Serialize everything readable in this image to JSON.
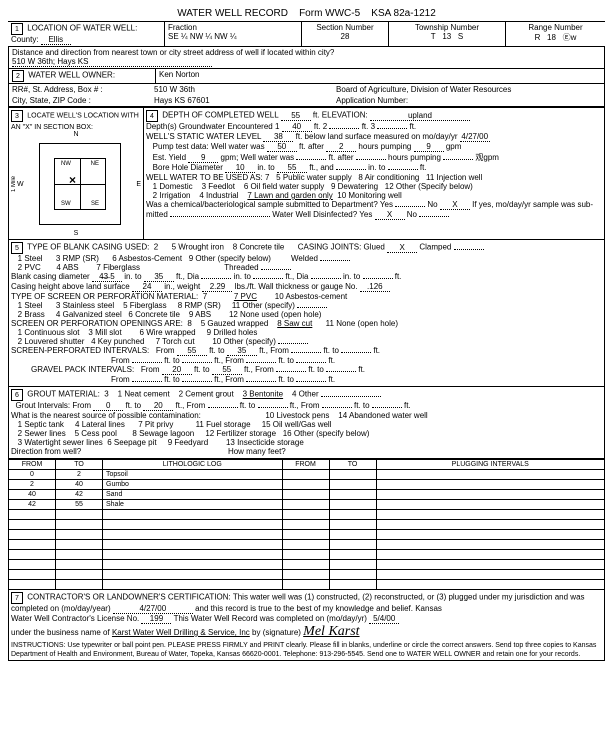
{
  "form_title": "WATER WELL RECORD",
  "form_code": "Form WWC-5",
  "form_ksa": "KSA 82a-1212",
  "location": {
    "label": "LOCATION OF WATER WELL:",
    "county_label": "County:",
    "county": "Ellis",
    "fraction_label": "Fraction",
    "fraction_se": "SE",
    "fraction_nw1": "NW",
    "fraction_nw2": "NW",
    "quarter": "¼",
    "section_label": "Section Number",
    "section": "28",
    "township_label": "Township Number",
    "township_t": "T",
    "township": "13",
    "township_s": "S",
    "range_label": "Range Number",
    "range_r": "R",
    "range": "18",
    "range_dir": "Ⓔw",
    "distance_label": "Distance and direction from nearest town or city street address of well if located within city?",
    "distance": "510 W 36th; Hays KS"
  },
  "owner": {
    "label": "WATER WELL OWNER:",
    "name": "Ken Norton",
    "addr_label": "RR#, St. Address, Box # :",
    "addr": "510 W 36th",
    "city_label": "City, State, ZIP Code :",
    "city": "Hays KS 67601",
    "board": "Board of Agriculture, Division of Water Resources",
    "app_label": "Application Number:"
  },
  "locate": {
    "label": "LOCATE WELL'S LOCATION WITH AN \"X\" IN SECTION BOX:",
    "n": "N",
    "s": "S",
    "e": "E",
    "w": "W",
    "nw": "NW",
    "ne": "NE",
    "sw": "SW",
    "se": "SE",
    "mile": "1 Mile"
  },
  "depth": {
    "completed_label": "DEPTH OF COMPLETED WELL",
    "completed": "55",
    "ft": "ft.",
    "elevation_label": "ELEVATION:",
    "elevation": "upland",
    "gw_label": "Depth(s) Groundwater Encountered 1",
    "gw1": "40",
    "gw2_label": "ft. 2",
    "gw3_label": "ft. 3",
    "static_label": "WELL'S STATIC WATER LEVEL",
    "static": "38",
    "static_rest": "ft. below land surface measured on mo/day/yr",
    "static_date": "4/27/00",
    "pump_label": "Pump test data: Well water was",
    "pump1": "50",
    "after": "ft. after",
    "pump2": "2",
    "hours_pumping": "hours pumping",
    "pump3": "9",
    "gpm": "gpm",
    "est_label": "Est. Yield",
    "est": "9",
    "est_rest": "gpm; Well water was",
    "est_after": "ft. after",
    "est_hours": "hours pumping",
    "bore_label": "Bore Hole Diameter",
    "bore1": "10",
    "in_to": "in. to",
    "bore2": "55",
    "ft_and": "ft., and",
    "use_label": "WELL WATER TO BE USED AS:",
    "use_val": "7",
    "use_1": "1 Domestic",
    "use_2": "2 Irrigation",
    "use_3": "3 Feedlot",
    "use_4": "4 Industrial",
    "use_5": "5 Public water supply",
    "use_6": "6 Oil field water supply",
    "use_7": "7 Lawn and garden only",
    "use_8": "8 Air conditioning",
    "use_9": "9 Dewatering",
    "use_10": "10 Monitoring well",
    "use_11": "11 Injection well",
    "use_12": "12 Other (Specify below)",
    "chem_label": "Was a chemical/bacteriological sample submitted to Department? Yes",
    "no": "No",
    "x": "X",
    "chem_rest": "If yes, mo/day/yr sample was sub-",
    "mitted": "mitted",
    "disinfect": "Water Well Disinfected? Yes",
    "disinfect_no": "No"
  },
  "casing": {
    "label": "TYPE OF BLANK CASING USED:",
    "val": "2",
    "c1": "1 Steel",
    "c2": "2 PVC",
    "c3": "3 RMP (SR)",
    "c4": "4 ABS",
    "c5": "5 Wrought iron",
    "c6": "6 Asbestos-Cement",
    "c7": "7 Fiberglass",
    "c8": "8 Concrete tile",
    "c9": "9 Other (specify below)",
    "joints": "CASING JOINTS: Glued",
    "jx": "X",
    "clamped": "Clamped",
    "welded": "Welded",
    "threaded": "Threaded",
    "diam_label": "Blank casing diameter",
    "diam": "4̶3̶ 5",
    "diam_to": "in. to",
    "diam2": "35",
    "ft_dia": "ft., Dia",
    "height_label": "Casing height above land surface",
    "height": "24",
    "in_weight": "in., weight",
    "weight": "2.29",
    "lbs": "lbs./ft. Wall thickness or gauge No.",
    "gauge": ".126",
    "screen_label": "TYPE OF SCREEN OR PERFORATION MATERIAL:",
    "screen_val": "7",
    "s1": "1 Steel",
    "s2": "2 Brass",
    "s3": "3 Stainless steel",
    "s4": "4 Galvanized steel",
    "s5": "5 Fiberglass",
    "s6": "6 Concrete tile",
    "s7": "7 PVC",
    "s8": "8 RMP (SR)",
    "s9": "9 ABS",
    "s10": "10 Asbestos-cement",
    "s11": "11 Other (specify)",
    "s12": "12 None used (open hole)",
    "open_label": "SCREEN OR PERFORATION OPENINGS ARE:",
    "open_val": "8",
    "o1": "1 Continuous slot",
    "o2": "2 Louvered shutter",
    "o3": "3 Mill slot",
    "o4": "4 Key punched",
    "o5": "5 Gauzed wrapped",
    "o6": "6 Wire wrapped",
    "o7": "7 Torch cut",
    "o8": "8 Saw cut",
    "o9": "9 Drilled holes",
    "o10": "10 Other (specify)",
    "o11": "11 None (open hole)",
    "perf_label": "SCREEN-PERFORATED INTERVALS:",
    "from": "From",
    "to": "ft. to",
    "ft_from": "ft., From",
    "perf1a": "55",
    "perf1b": "35",
    "gravel_label": "GRAVEL PACK INTERVALS:",
    "grav1a": "20",
    "grav1b": "55"
  },
  "grout": {
    "label": "GROUT MATERIAL:",
    "val": "3",
    "g1": "1 Neat cement",
    "g2": "2 Cement grout",
    "g3": "3 Bentonite",
    "g4": "4 Other",
    "interval_label": "Grout Intervals: From",
    "gi1": "0",
    "gi2": "20",
    "source_label": "What is the nearest source of possible contamination:",
    "n1": "1 Septic tank",
    "n2": "2 Sewer lines",
    "n3": "3 Watertight sewer lines",
    "n4": "4 Lateral lines",
    "n5": "5 Cess pool",
    "n6": "6 Seepage pit",
    "n7": "7 Pit privy",
    "n8": "8 Sewage lagoon",
    "n9": "9 Feedyard",
    "n10": "10 Livestock pens",
    "n11": "11 Fuel storage",
    "n12": "12 Fertilizer storage",
    "n13": "13 Insecticide storage",
    "n14": "14 Abandoned water well",
    "n15": "15 Oil well/Gas well",
    "n16": "16 Other (specify below)",
    "dir_label": "Direction from well?",
    "feet_label": "How many feet?"
  },
  "log": {
    "from_h": "FROM",
    "to_h": "TO",
    "lith_h": "LITHOLOGIC LOG",
    "plug_h": "PLUGGING INTERVALS",
    "rows": [
      {
        "from": "0",
        "to": "2",
        "lith": "Topsoil"
      },
      {
        "from": "2",
        "to": "40",
        "lith": "Gumbo"
      },
      {
        "from": "40",
        "to": "42",
        "lith": "Sand"
      },
      {
        "from": "42",
        "to": "55",
        "lith": "Shale"
      }
    ]
  },
  "cert": {
    "label": "CONTRACTOR'S OR LANDOWNER'S CERTIFICATION: This water well was (1) constructed, (2) reconstructed, or (3) plugged under my jurisdiction and was",
    "completed": "completed on (mo/day/year)",
    "date1": "4/27/00",
    "record_rest": "and this record is true to the best of my knowledge and belief. Kansas",
    "license": "Water Well Contractor's License No.",
    "lic_no": "199",
    "rec_completed": "This Water Well Record was completed on (mo/day/yr)",
    "date2": "5/4/00",
    "business": "under the business name of",
    "bus_name": "Karst Water Well Drilling & Service, Inc",
    "sig_label": "by (signature)",
    "signature": "Mel Karst",
    "instructions": "INSTRUCTIONS: Use typewriter or ball point pen. PLEASE PRESS FIRMLY and PRINT clearly. Please fill in blanks, underline or circle the correct answers. Send top three copies to Kansas Department of Health and Environment, Bureau of Water, Topeka, Kansas 66620-0001. Telephone: 913-296-5545. Send one to WATER WELL OWNER and retain one for your records."
  }
}
